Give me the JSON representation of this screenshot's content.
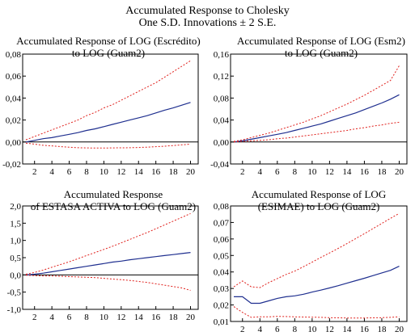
{
  "figure": {
    "title_line1": "Accumulated Response to Cholesky",
    "title_line2": "One S.D. Innovations ± 2 S.E."
  },
  "colors": {
    "response": "#1f2f8f",
    "band": "#e0201c",
    "zero": "#000000",
    "frame": "#000000"
  },
  "chart_data": [
    {
      "type": "line",
      "title": [
        "Accumulated Response of LOG (Escrédito)",
        "to LOG (Guam2)"
      ],
      "x": [
        1,
        2,
        3,
        4,
        5,
        6,
        7,
        8,
        9,
        10,
        11,
        12,
        13,
        14,
        15,
        16,
        17,
        18,
        19,
        20
      ],
      "xticks": [
        2,
        4,
        6,
        8,
        10,
        12,
        14,
        16,
        18,
        20
      ],
      "xticklabels": [
        "2",
        "4",
        "6",
        "8",
        "10",
        "12",
        "14",
        "16",
        "18",
        "20"
      ],
      "ylim": [
        -0.02,
        0.08
      ],
      "yticks": [
        -0.02,
        0.0,
        0.02,
        0.04,
        0.06,
        0.08
      ],
      "yticklabels": [
        "-0,02",
        "0,00",
        "0,02",
        "0,04",
        "0,06",
        "0,08"
      ],
      "grid": false,
      "zero_line": true,
      "series": [
        {
          "role": "response",
          "style": "solid",
          "values": [
            0.0,
            0.0015,
            0.003,
            0.004,
            0.0055,
            0.007,
            0.0085,
            0.0105,
            0.012,
            0.014,
            0.016,
            0.018,
            0.02,
            0.022,
            0.024,
            0.0265,
            0.029,
            0.031,
            0.0335,
            0.036
          ]
        },
        {
          "role": "upper",
          "style": "dashed",
          "values": [
            0.002,
            0.005,
            0.008,
            0.011,
            0.014,
            0.017,
            0.02,
            0.024,
            0.027,
            0.031,
            0.034,
            0.038,
            0.042,
            0.046,
            0.05,
            0.054,
            0.059,
            0.064,
            0.069,
            0.074
          ]
        },
        {
          "role": "lower",
          "style": "dashed",
          "values": [
            -0.001,
            -0.002,
            -0.003,
            -0.0035,
            -0.0042,
            -0.0048,
            -0.0052,
            -0.0054,
            -0.0055,
            -0.0055,
            -0.0054,
            -0.0053,
            -0.0052,
            -0.005,
            -0.0047,
            -0.0043,
            -0.0038,
            -0.0032,
            -0.0026,
            -0.002
          ]
        }
      ]
    },
    {
      "type": "line",
      "title": [
        "Accumulated Response of LOG (Esm2)",
        "to LOG (Guam2)"
      ],
      "x": [
        1,
        2,
        3,
        4,
        5,
        6,
        7,
        8,
        9,
        10,
        11,
        12,
        13,
        14,
        15,
        16,
        17,
        18,
        19,
        20
      ],
      "xticks": [
        2,
        4,
        6,
        8,
        10,
        12,
        14,
        16,
        18,
        20
      ],
      "xticklabels": [
        "2",
        "4",
        "6",
        "8",
        "10",
        "12",
        "14",
        "16",
        "18",
        "20"
      ],
      "ylim": [
        -0.04,
        0.16
      ],
      "yticks": [
        -0.04,
        0.0,
        0.04,
        0.08,
        0.12,
        0.16
      ],
      "yticklabels": [
        "-0,04",
        "0,00",
        "0,04",
        "0,08",
        "0,12",
        "0,16"
      ],
      "grid": false,
      "zero_line": true,
      "series": [
        {
          "role": "response",
          "style": "solid",
          "values": [
            0.0,
            0.002,
            0.005,
            0.008,
            0.011,
            0.014,
            0.017,
            0.021,
            0.025,
            0.029,
            0.033,
            0.038,
            0.043,
            0.048,
            0.053,
            0.059,
            0.065,
            0.071,
            0.078,
            0.086
          ]
        },
        {
          "role": "upper",
          "style": "dashed",
          "values": [
            0.001,
            0.004,
            0.008,
            0.012,
            0.016,
            0.021,
            0.026,
            0.031,
            0.036,
            0.042,
            0.048,
            0.055,
            0.062,
            0.069,
            0.077,
            0.085,
            0.094,
            0.103,
            0.112,
            0.139
          ]
        },
        {
          "role": "lower",
          "style": "dashed",
          "values": [
            0.0,
            0.001,
            0.002,
            0.003,
            0.004,
            0.006,
            0.007,
            0.009,
            0.011,
            0.013,
            0.015,
            0.017,
            0.019,
            0.021,
            0.024,
            0.026,
            0.029,
            0.031,
            0.034,
            0.036
          ]
        }
      ]
    },
    {
      "type": "line",
      "title": [
        "Accumulated Response",
        "of ESTASA ACTIVA to LOG (Guam2)"
      ],
      "x": [
        1,
        2,
        3,
        4,
        5,
        6,
        7,
        8,
        9,
        10,
        11,
        12,
        13,
        14,
        15,
        16,
        17,
        18,
        19,
        20
      ],
      "xticks": [
        2,
        4,
        6,
        8,
        10,
        12,
        14,
        16,
        18,
        20
      ],
      "xticklabels": [
        "2",
        "4",
        "6",
        "8",
        "10",
        "12",
        "14",
        "16",
        "18",
        "20"
      ],
      "ylim": [
        -1.0,
        2.0
      ],
      "yticks": [
        -1.0,
        -0.5,
        0.0,
        0.5,
        1.0,
        1.5,
        2.0
      ],
      "yticklabels": [
        "-1,0",
        "-0,5",
        "0,0",
        "0,5",
        "1,0",
        "1,5",
        "2,0"
      ],
      "grid": false,
      "zero_line": true,
      "series": [
        {
          "role": "response",
          "style": "solid",
          "values": [
            0.0,
            0.02,
            0.05,
            0.09,
            0.13,
            0.17,
            0.21,
            0.25,
            0.29,
            0.33,
            0.37,
            0.4,
            0.44,
            0.47,
            0.5,
            0.53,
            0.56,
            0.59,
            0.62,
            0.65
          ]
        },
        {
          "role": "upper",
          "style": "dashed",
          "values": [
            0.02,
            0.07,
            0.14,
            0.22,
            0.3,
            0.38,
            0.47,
            0.56,
            0.65,
            0.74,
            0.83,
            0.93,
            1.03,
            1.13,
            1.23,
            1.34,
            1.45,
            1.56,
            1.67,
            1.78
          ]
        },
        {
          "role": "lower",
          "style": "dashed",
          "values": [
            -0.01,
            -0.02,
            -0.03,
            -0.03,
            -0.04,
            -0.05,
            -0.06,
            -0.07,
            -0.08,
            -0.1,
            -0.12,
            -0.14,
            -0.16,
            -0.19,
            -0.22,
            -0.26,
            -0.3,
            -0.34,
            -0.38,
            -0.45
          ]
        }
      ]
    },
    {
      "type": "line",
      "title": [
        "Accumulated Response of LOG",
        "(ESIMAE) to LOG (Guam2)"
      ],
      "x": [
        1,
        2,
        3,
        4,
        5,
        6,
        7,
        8,
        9,
        10,
        11,
        12,
        13,
        14,
        15,
        16,
        17,
        18,
        19,
        20
      ],
      "xticks": [
        2,
        4,
        6,
        8,
        10,
        12,
        14,
        16,
        18,
        20
      ],
      "xticklabels": [
        "2",
        "4",
        "6",
        "8",
        "10",
        "12",
        "14",
        "16",
        "18",
        "20"
      ],
      "ylim": [
        0.01,
        0.08
      ],
      "yticks": [
        0.01,
        0.02,
        0.03,
        0.04,
        0.05,
        0.06,
        0.07,
        0.08
      ],
      "yticklabels": [
        "0,01",
        "0,02",
        "0,03",
        "0,04",
        "0,05",
        "0,06",
        "0,07",
        "0,08"
      ],
      "grid": false,
      "zero_line": false,
      "series": [
        {
          "role": "response",
          "style": "solid",
          "values": [
            0.025,
            0.025,
            0.021,
            0.021,
            0.0225,
            0.024,
            0.025,
            0.0255,
            0.0265,
            0.0278,
            0.029,
            0.0303,
            0.0317,
            0.0332,
            0.0347,
            0.0362,
            0.0378,
            0.0394,
            0.041,
            0.0435
          ]
        },
        {
          "role": "upper",
          "style": "dashed",
          "values": [
            0.031,
            0.0345,
            0.031,
            0.0305,
            0.0335,
            0.036,
            0.0385,
            0.0405,
            0.0432,
            0.046,
            0.0488,
            0.0515,
            0.0543,
            0.0572,
            0.0602,
            0.0632,
            0.0663,
            0.0694,
            0.0725,
            0.0755
          ]
        },
        {
          "role": "lower",
          "style": "dashed",
          "values": [
            0.019,
            0.0155,
            0.0125,
            0.0128,
            0.0128,
            0.0131,
            0.013,
            0.0128,
            0.0127,
            0.0126,
            0.0125,
            0.0123,
            0.0122,
            0.0121,
            0.0121,
            0.0121,
            0.0122,
            0.0123,
            0.0125,
            0.0128
          ]
        }
      ]
    }
  ]
}
